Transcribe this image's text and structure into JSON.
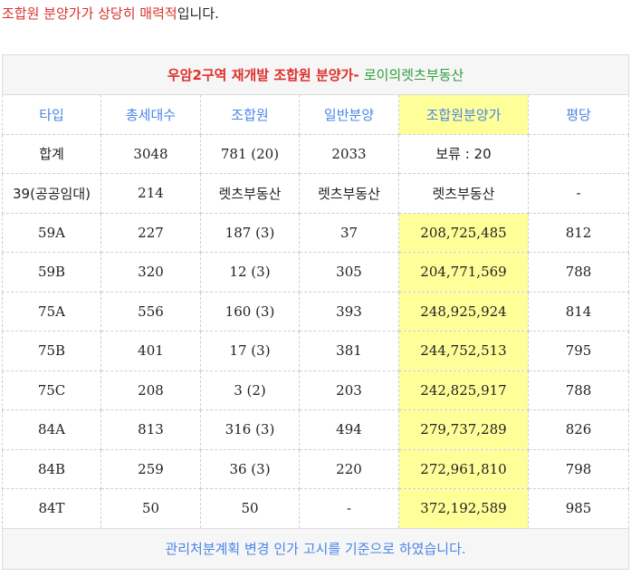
{
  "intro": {
    "highlight": "조합원 분양가가 상당히 매력적",
    "rest": "입니다."
  },
  "table": {
    "title": {
      "main": "우암2구역 재개발 조합원 분양가",
      "separator": "- ",
      "source": "로이의렛츠부동산"
    },
    "headers": [
      "타입",
      "총세대수",
      "조합원",
      "일반분양",
      "조합원분양가",
      "평당"
    ],
    "summary": {
      "type": "합계",
      "total": "3048",
      "member": "781 (20)",
      "general": "2033",
      "price": "보류 : 20",
      "per_pyeong": ""
    },
    "rows": [
      {
        "type": "39(공공임대)",
        "total": "214",
        "member": "렛츠부동산",
        "general": "렛츠부동산",
        "price": "렛츠부동산",
        "per_pyeong": "-"
      },
      {
        "type": "59A",
        "total": "227",
        "member": "187 (3)",
        "general": "37",
        "price": "208,725,485",
        "per_pyeong": "812"
      },
      {
        "type": "59B",
        "total": "320",
        "member": "12 (3)",
        "general": "305",
        "price": "204,771,569",
        "per_pyeong": "788"
      },
      {
        "type": "75A",
        "total": "556",
        "member": "160 (3)",
        "general": "393",
        "price": "248,925,924",
        "per_pyeong": "814"
      },
      {
        "type": "75B",
        "total": "401",
        "member": "17 (3)",
        "general": "381",
        "price": "244,752,513",
        "per_pyeong": "795"
      },
      {
        "type": "75C",
        "total": "208",
        "member": "3 (2)",
        "general": "203",
        "price": "242,825,917",
        "per_pyeong": "788"
      },
      {
        "type": "84A",
        "total": "813",
        "member": "316 (3)",
        "general": "494",
        "price": "279,737,289",
        "per_pyeong": "826"
      },
      {
        "type": "84B",
        "total": "259",
        "member": "36 (3)",
        "general": "220",
        "price": "272,961,810",
        "per_pyeong": "798"
      },
      {
        "type": "84T",
        "total": "50",
        "member": "50",
        "general": "-",
        "price": "372,192,589",
        "per_pyeong": "985"
      }
    ],
    "footer": "관리처분계획 변경 인가 고시를 기준으로 하였습니다."
  },
  "colors": {
    "title_red": "#e0302c",
    "source_green": "#2e9e3c",
    "label_blue": "#4a86e8",
    "highlight_yellow": "#ffff99"
  }
}
